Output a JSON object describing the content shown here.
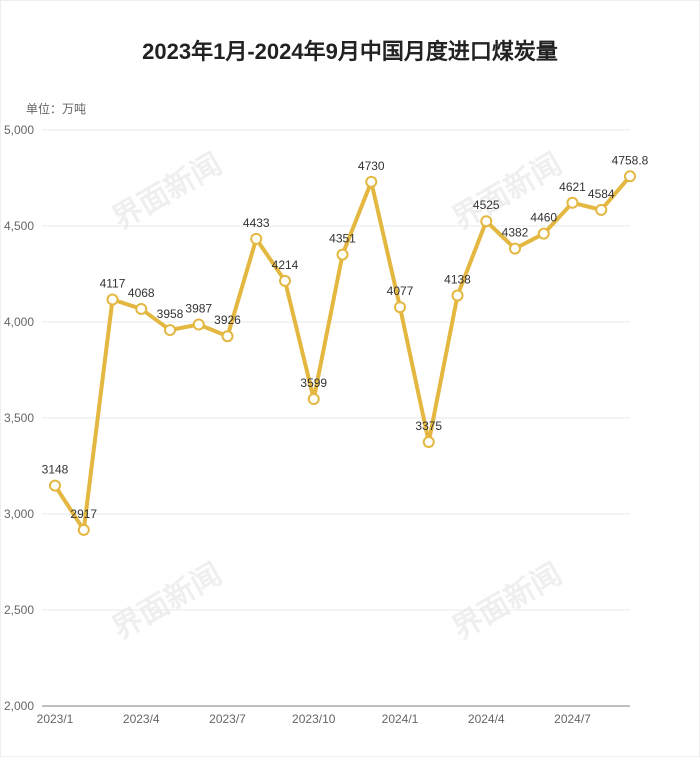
{
  "chart_data": {
    "type": "line",
    "title": "2023年1月-2024年9月中国月度进口煤炭量",
    "unit_label": "单位：万吨",
    "x": [
      "2023/1",
      "2023/2",
      "2023/3",
      "2023/4",
      "2023/5",
      "2023/6",
      "2023/7",
      "2023/8",
      "2023/9",
      "2023/10",
      "2023/11",
      "2023/12",
      "2024/1",
      "2024/2",
      "2024/3",
      "2024/4",
      "2024/5",
      "2024/6",
      "2024/7",
      "2024/8",
      "2024/9"
    ],
    "x_tick_labels": [
      "2023/1",
      "2023/4",
      "2023/7",
      "2023/10",
      "2024/1",
      "2024/4",
      "2024/7"
    ],
    "values": [
      3148,
      2917,
      4117,
      4068,
      3958,
      3987,
      3926,
      4433,
      4214,
      3599,
      4351,
      4730,
      4077,
      3375,
      4138,
      4525,
      4382,
      4460,
      4621,
      4584,
      4758.8
    ],
    "data_labels": [
      "3148",
      "2917",
      "4117",
      "4068",
      "3958",
      "3987",
      "3926",
      "4433",
      "4214",
      "3599",
      "4351",
      "4730",
      "4077",
      "3375",
      "4138",
      "4525",
      "4382",
      "4460",
      "4621",
      "4584",
      "4758.8"
    ],
    "ylim": [
      2000,
      5000
    ],
    "y_tick_labels": [
      "2,000",
      "2,500",
      "3,000",
      "3,500",
      "4,000",
      "4,500",
      "5,000"
    ],
    "grid": true,
    "line_color": "#e3b740"
  },
  "watermark": "界面新闻"
}
